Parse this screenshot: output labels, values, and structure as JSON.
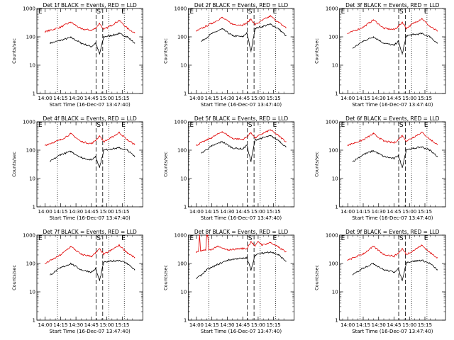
{
  "page_title": "",
  "colors": {
    "events": "#000000",
    "lld": "#e00000",
    "background": "#ffffff"
  },
  "chart_data": [
    {
      "type": "line",
      "title": "Det 1f BLACK = Events, RED = LLD",
      "xlabel": "Start Time (16-Dec-07 13:47:40)",
      "ylabel": "Counts/sec",
      "yscale": "log",
      "ylim": [
        1,
        1000
      ],
      "y_ticks": [
        "1",
        "10",
        "100",
        "1000"
      ],
      "x_ticks": [
        "14:00",
        "14:15",
        "14:30",
        "14:45",
        "15:00",
        "15:15"
      ],
      "x_range_min": [
        -8,
        95
      ],
      "dotted_markers_min": [
        12,
        62,
        77
      ],
      "dashed_markers_min": [
        49.5,
        56
      ],
      "marker_labels": {
        "E_left": "E",
        "S": "S",
        "E_right": "E"
      },
      "grid": false,
      "series": [
        {
          "name": "Events",
          "color": "#000000",
          "x": [
            5,
            15,
            25,
            35,
            45,
            49,
            53,
            57,
            64,
            72,
            80,
            87
          ],
          "y": [
            60,
            75,
            95,
            60,
            45,
            60,
            25,
            100,
            110,
            130,
            100,
            60
          ]
        },
        {
          "name": "LLD",
          "color": "#e00000",
          "x": [
            0,
            15,
            25,
            35,
            45,
            49,
            53,
            57,
            64,
            72,
            80,
            87
          ],
          "y": [
            150,
            220,
            330,
            190,
            170,
            200,
            300,
            180,
            250,
            380,
            200,
            140
          ]
        }
      ]
    },
    {
      "type": "line",
      "title": "Det 2f BLACK = Events, RED = LLD",
      "xlabel": "Start Time (16-Dec-07 13:47:40)",
      "ylabel": "Counts/sec",
      "yscale": "log",
      "ylim": [
        1,
        1000
      ],
      "y_ticks": [
        "1",
        "10",
        "100",
        "1000"
      ],
      "x_ticks": [
        "14:00",
        "14:15",
        "14:30",
        "14:45",
        "15:00",
        "15:15"
      ],
      "x_range_min": [
        -8,
        95
      ],
      "dotted_markers_min": [
        12,
        62,
        77
      ],
      "dashed_markers_min": [
        49.5,
        56
      ],
      "marker_labels": {
        "E_left": "E",
        "S": "S",
        "E_right": "E"
      },
      "grid": false,
      "series": [
        {
          "name": "Events",
          "color": "#000000",
          "x": [
            5,
            15,
            25,
            35,
            45,
            49,
            53,
            57,
            64,
            72,
            80,
            87
          ],
          "y": [
            70,
            130,
            190,
            110,
            100,
            140,
            30,
            200,
            230,
            280,
            190,
            110
          ]
        },
        {
          "name": "LLD",
          "color": "#e00000",
          "x": [
            0,
            15,
            25,
            35,
            45,
            49,
            53,
            57,
            64,
            72,
            80,
            87
          ],
          "y": [
            160,
            300,
            480,
            280,
            260,
            310,
            420,
            270,
            380,
            540,
            320,
            210
          ]
        }
      ]
    },
    {
      "type": "line",
      "title": "Det 3f BLACK = Events, RED = LLD",
      "xlabel": "Start Time (16-Dec-07 13:47:40)",
      "ylabel": "Counts/sec",
      "yscale": "log",
      "ylim": [
        1,
        1000
      ],
      "y_ticks": [
        "1",
        "10",
        "100",
        "1000"
      ],
      "x_ticks": [
        "14:00",
        "14:15",
        "14:30",
        "14:45",
        "15:00",
        "15:15"
      ],
      "x_range_min": [
        -8,
        95
      ],
      "dotted_markers_min": [
        12,
        62,
        77
      ],
      "dashed_markers_min": [
        49.5,
        56
      ],
      "marker_labels": {
        "E_left": "E",
        "S": "S",
        "E_right": "E"
      },
      "grid": false,
      "series": [
        {
          "name": "Events",
          "color": "#000000",
          "x": [
            5,
            15,
            25,
            35,
            45,
            49,
            53,
            57,
            64,
            72,
            80,
            87
          ],
          "y": [
            40,
            70,
            100,
            60,
            50,
            70,
            25,
            110,
            120,
            130,
            100,
            60
          ]
        },
        {
          "name": "LLD",
          "color": "#e00000",
          "x": [
            0,
            15,
            25,
            35,
            45,
            49,
            53,
            57,
            64,
            72,
            80,
            87
          ],
          "y": [
            130,
            220,
            400,
            200,
            180,
            230,
            330,
            200,
            300,
            440,
            230,
            160
          ]
        }
      ]
    },
    {
      "type": "line",
      "title": "Det 4f BLACK = Events, RED = LLD",
      "xlabel": "Start Time (16-Dec-07 13:47:40)",
      "ylabel": "Counts/sec",
      "yscale": "log",
      "ylim": [
        1,
        1000
      ],
      "y_ticks": [
        "1",
        "10",
        "100",
        "1000"
      ],
      "x_ticks": [
        "14:00",
        "14:15",
        "14:30",
        "14:45",
        "15:00",
        "15:15"
      ],
      "x_range_min": [
        -8,
        95
      ],
      "dotted_markers_min": [
        12,
        62,
        77
      ],
      "dashed_markers_min": [
        49.5,
        56
      ],
      "marker_labels": {
        "E_left": "E",
        "S": "S",
        "E_right": "E"
      },
      "grid": false,
      "series": [
        {
          "name": "Events",
          "color": "#000000",
          "x": [
            5,
            15,
            25,
            35,
            45,
            49,
            53,
            57,
            64,
            72,
            80,
            87
          ],
          "y": [
            40,
            70,
            90,
            55,
            45,
            60,
            25,
            100,
            110,
            120,
            100,
            60
          ]
        },
        {
          "name": "LLD",
          "color": "#e00000",
          "x": [
            0,
            15,
            25,
            35,
            45,
            49,
            53,
            57,
            64,
            72,
            80,
            87
          ],
          "y": [
            150,
            230,
            380,
            200,
            170,
            220,
            320,
            200,
            270,
            420,
            230,
            160
          ]
        }
      ]
    },
    {
      "type": "line",
      "title": "Det 5f BLACK = Events, RED = LLD",
      "xlabel": "Start Time (16-Dec-07 13:47:40)",
      "ylabel": "Counts/sec",
      "yscale": "log",
      "ylim": [
        1,
        1000
      ],
      "y_ticks": [
        "1",
        "10",
        "100",
        "1000"
      ],
      "x_ticks": [
        "14:00",
        "14:15",
        "14:30",
        "14:45",
        "15:00",
        "15:15"
      ],
      "x_range_min": [
        -8,
        95
      ],
      "dotted_markers_min": [
        12,
        62,
        77
      ],
      "dashed_markers_min": [
        49.5,
        56
      ],
      "marker_labels": {
        "E_left": "E",
        "S": "S",
        "E_right": "E"
      },
      "grid": false,
      "series": [
        {
          "name": "Events",
          "color": "#000000",
          "x": [
            5,
            15,
            25,
            35,
            45,
            49,
            53,
            57,
            64,
            72,
            80,
            87
          ],
          "y": [
            80,
            140,
            200,
            120,
            110,
            150,
            40,
            230,
            270,
            320,
            220,
            130
          ]
        },
        {
          "name": "LLD",
          "color": "#e00000",
          "x": [
            0,
            15,
            25,
            35,
            45,
            49,
            53,
            57,
            64,
            72,
            80,
            87
          ],
          "y": [
            150,
            280,
            450,
            260,
            240,
            290,
            420,
            270,
            380,
            520,
            320,
            200
          ]
        }
      ]
    },
    {
      "type": "line",
      "title": "Det 6f BLACK = Events, RED = LLD",
      "xlabel": "Start Time (16-Dec-07 13:47:40)",
      "ylabel": "Counts/sec",
      "yscale": "log",
      "ylim": [
        1,
        1000
      ],
      "y_ticks": [
        "1",
        "10",
        "100",
        "1000"
      ],
      "x_ticks": [
        "14:00",
        "14:15",
        "14:30",
        "14:45",
        "15:00",
        "15:15"
      ],
      "x_range_min": [
        -8,
        95
      ],
      "dotted_markers_min": [
        12,
        62,
        77
      ],
      "dashed_markers_min": [
        49.5,
        56
      ],
      "marker_labels": {
        "E_left": "E",
        "S": "S",
        "E_right": "E"
      },
      "grid": false,
      "series": [
        {
          "name": "Events",
          "color": "#000000",
          "x": [
            5,
            15,
            25,
            35,
            45,
            49,
            53,
            57,
            64,
            72,
            80,
            87
          ],
          "y": [
            40,
            70,
            95,
            60,
            50,
            65,
            25,
            105,
            115,
            130,
            100,
            60
          ]
        },
        {
          "name": "LLD",
          "color": "#e00000",
          "x": [
            0,
            15,
            25,
            35,
            45,
            49,
            53,
            57,
            64,
            72,
            80,
            87
          ],
          "y": [
            150,
            230,
            380,
            210,
            180,
            230,
            330,
            210,
            290,
            430,
            240,
            160
          ]
        }
      ]
    },
    {
      "type": "line",
      "title": "Det 7f BLACK = Events, RED = LLD",
      "xlabel": "Start Time (16-Dec-07 13:47:40)",
      "ylabel": "Counts/sec",
      "yscale": "log",
      "ylim": [
        1,
        1000
      ],
      "y_ticks": [
        "1",
        "10",
        "100",
        "1000"
      ],
      "x_ticks": [
        "14:00",
        "14:15",
        "14:30",
        "14:45",
        "15:00",
        "15:15"
      ],
      "x_range_min": [
        -8,
        95
      ],
      "dotted_markers_min": [
        12,
        62,
        77
      ],
      "dashed_markers_min": [
        49.5,
        56
      ],
      "marker_labels": {
        "E_left": "E",
        "S": "S",
        "E_right": "E"
      },
      "grid": false,
      "series": [
        {
          "name": "Events",
          "color": "#000000",
          "x": [
            5,
            15,
            25,
            35,
            45,
            49,
            53,
            57,
            64,
            72,
            80,
            87
          ],
          "y": [
            40,
            70,
            100,
            60,
            50,
            65,
            25,
            110,
            120,
            130,
            100,
            60
          ]
        },
        {
          "name": "LLD",
          "color": "#e00000",
          "x": [
            0,
            15,
            25,
            35,
            45,
            49,
            53,
            57,
            64,
            72,
            80,
            87
          ],
          "y": [
            100,
            200,
            400,
            210,
            180,
            230,
            330,
            210,
            290,
            440,
            240,
            160
          ]
        }
      ]
    },
    {
      "type": "line",
      "title": "Det 8f BLACK = Events, RED = LLD",
      "xlabel": "Start Time (16-Dec-07 13:47:40)",
      "ylabel": "Counts/sec",
      "yscale": "log",
      "ylim": [
        1,
        1000
      ],
      "y_ticks": [
        "1",
        "10",
        "100",
        "1000"
      ],
      "x_ticks": [
        "14:00",
        "14:15",
        "14:30",
        "14:45",
        "15:00",
        "15:15"
      ],
      "x_range_min": [
        -8,
        95
      ],
      "dotted_markers_min": [
        12,
        62,
        77
      ],
      "dashed_markers_min": [
        49.5,
        56
      ],
      "marker_labels": {
        "E_left": "E",
        "S": "S",
        "E_right": "E"
      },
      "grid": false,
      "series": [
        {
          "name": "Events",
          "color": "#000000",
          "x": [
            0,
            5,
            10,
            20,
            30,
            40,
            45,
            49,
            53,
            57,
            64,
            72,
            80,
            87
          ],
          "y": [
            30,
            40,
            60,
            90,
            130,
            150,
            150,
            160,
            60,
            200,
            230,
            260,
            200,
            120
          ]
        },
        {
          "name": "LLD",
          "color": "#e00000",
          "x": [
            0,
            2,
            3,
            4,
            9,
            10,
            11,
            12,
            14,
            20,
            30,
            40,
            45,
            49,
            53,
            57,
            60,
            64,
            72,
            80,
            87
          ],
          "y": [
            250,
            270,
            1000,
            280,
            290,
            1000,
            1000,
            300,
            300,
            400,
            300,
            330,
            340,
            330,
            600,
            400,
            600,
            450,
            550,
            370,
            260
          ]
        }
      ]
    },
    {
      "type": "line",
      "title": "Det 9f BLACK = Events, RED = LLD",
      "xlabel": "Start Time (16-Dec-07 13:47:40)",
      "ylabel": "Counts/sec",
      "yscale": "log",
      "ylim": [
        1,
        1000
      ],
      "y_ticks": [
        "1",
        "10",
        "100",
        "1000"
      ],
      "x_ticks": [
        "14:00",
        "14:15",
        "14:30",
        "14:45",
        "15:00",
        "15:15"
      ],
      "x_range_min": [
        -8,
        95
      ],
      "dotted_markers_min": [
        12,
        62,
        77
      ],
      "dashed_markers_min": [
        49.5,
        56
      ],
      "marker_labels": {
        "E_left": "E",
        "S": "S",
        "E_right": "E"
      },
      "grid": false,
      "series": [
        {
          "name": "Events",
          "color": "#000000",
          "x": [
            5,
            15,
            25,
            35,
            45,
            49,
            53,
            57,
            64,
            72,
            80,
            87
          ],
          "y": [
            40,
            70,
            100,
            60,
            50,
            65,
            25,
            110,
            120,
            130,
            100,
            60
          ]
        },
        {
          "name": "LLD",
          "color": "#e00000",
          "x": [
            0,
            15,
            25,
            35,
            45,
            49,
            53,
            57,
            64,
            72,
            80,
            87
          ],
          "y": [
            130,
            220,
            400,
            210,
            180,
            230,
            330,
            210,
            290,
            440,
            240,
            160
          ]
        }
      ]
    }
  ]
}
